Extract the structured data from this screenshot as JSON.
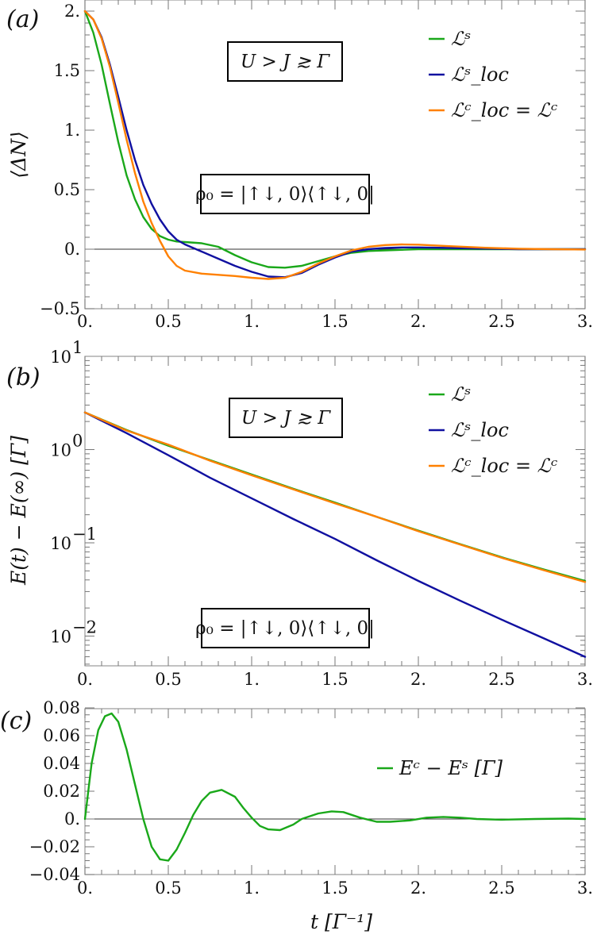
{
  "chart_data": [
    {
      "panel": "(a)",
      "type": "line",
      "title": "",
      "xlabel": "",
      "ylabel": "⟨ΔN⟩",
      "xlim": [
        0,
        3
      ],
      "ylim": [
        -0.5,
        2
      ],
      "xticks": [
        "0.",
        "0.5",
        "1.",
        "1.5",
        "2.",
        "2.5",
        "3."
      ],
      "yticks": [
        "-0.5",
        "0.",
        "0.5",
        "1.",
        "1.5",
        "2."
      ],
      "grid": false,
      "legend_position": "upper right",
      "annotations": [
        "U > J ≳ Γ",
        "ρ₀ = |↑↓,0⟩⟨↑↓,0|"
      ],
      "x": [
        0,
        0.05,
        0.1,
        0.15,
        0.2,
        0.25,
        0.3,
        0.35,
        0.4,
        0.45,
        0.5,
        0.55,
        0.6,
        0.7,
        0.8,
        0.9,
        1.0,
        1.1,
        1.2,
        1.3,
        1.4,
        1.5,
        1.6,
        1.7,
        1.8,
        1.9,
        2.0,
        2.2,
        2.4,
        2.6,
        2.8,
        3.0
      ],
      "series": [
        {
          "name": "L^S",
          "color": "#1aa81a",
          "values": [
            2.0,
            1.82,
            1.55,
            1.22,
            0.9,
            0.62,
            0.42,
            0.27,
            0.17,
            0.11,
            0.08,
            0.065,
            0.06,
            0.05,
            0.02,
            -0.05,
            -0.11,
            -0.15,
            -0.155,
            -0.14,
            -0.1,
            -0.06,
            -0.03,
            -0.015,
            -0.01,
            -0.005,
            0.0,
            0.0,
            0.0,
            0.0,
            0.0,
            0.0
          ]
        },
        {
          "name": "L^S_loc",
          "color": "#1010a0",
          "values": [
            2.0,
            1.93,
            1.78,
            1.55,
            1.28,
            1.0,
            0.75,
            0.54,
            0.38,
            0.25,
            0.15,
            0.08,
            0.04,
            -0.02,
            -0.08,
            -0.14,
            -0.19,
            -0.23,
            -0.235,
            -0.2,
            -0.13,
            -0.07,
            -0.02,
            0.0,
            0.01,
            0.015,
            0.015,
            0.01,
            0.005,
            0.0,
            0.0,
            0.0
          ]
        },
        {
          "name": "L^C_loc = L^C",
          "color": "#ff8000",
          "values": [
            2.0,
            1.93,
            1.77,
            1.53,
            1.23,
            0.92,
            0.64,
            0.4,
            0.22,
            0.07,
            -0.06,
            -0.14,
            -0.18,
            -0.205,
            -0.215,
            -0.225,
            -0.24,
            -0.25,
            -0.24,
            -0.19,
            -0.12,
            -0.06,
            -0.01,
            0.02,
            0.035,
            0.04,
            0.038,
            0.025,
            0.012,
            0.004,
            0.0,
            -0.003
          ]
        }
      ]
    },
    {
      "panel": "(b)",
      "type": "line",
      "yscale": "log",
      "xlabel": "",
      "ylabel": "E(t) − E(∞) [Γ]",
      "xlim": [
        0,
        3
      ],
      "ylim": [
        0.005,
        10
      ],
      "xticks": [
        "0.",
        "0.5",
        "1.",
        "1.5",
        "2.",
        "2.5",
        "3."
      ],
      "yticks": [
        "10^-2",
        "10^-1",
        "10^0",
        "10^1"
      ],
      "grid": false,
      "legend_position": "upper right",
      "annotations": [
        "U > J ≳ Γ",
        "ρ₀ = |↑↓,0⟩⟨↑↓,0|"
      ],
      "x": [
        0,
        0.25,
        0.5,
        0.75,
        1.0,
        1.25,
        1.5,
        1.75,
        2.0,
        2.25,
        2.5,
        2.75,
        3.0
      ],
      "series": [
        {
          "name": "L^S",
          "color": "#1aa81a",
          "values": [
            2.5,
            1.62,
            1.1,
            0.77,
            0.54,
            0.38,
            0.27,
            0.19,
            0.135,
            0.097,
            0.07,
            0.052,
            0.039
          ]
        },
        {
          "name": "L^S_loc",
          "color": "#1010a0",
          "values": [
            2.5,
            1.5,
            0.87,
            0.5,
            0.3,
            0.18,
            0.11,
            0.065,
            0.039,
            0.024,
            0.015,
            0.0095,
            0.006
          ]
        },
        {
          "name": "L^C_loc = L^C",
          "color": "#ff8000",
          "values": [
            2.5,
            1.6,
            1.13,
            0.76,
            0.53,
            0.375,
            0.265,
            0.19,
            0.133,
            0.096,
            0.069,
            0.051,
            0.038
          ]
        }
      ]
    },
    {
      "panel": "(c)",
      "type": "line",
      "xlabel": "t [Γ^-1]",
      "ylabel": "",
      "xlim": [
        0,
        3
      ],
      "ylim": [
        -0.04,
        0.08
      ],
      "xticks": [
        "0.",
        "0.5",
        "1.",
        "1.5",
        "2.",
        "2.5",
        "3."
      ],
      "yticks": [
        "-0.04",
        "-0.02",
        "0.",
        "0.02",
        "0.04",
        "0.06",
        "0.08"
      ],
      "grid": false,
      "legend_position": "upper right",
      "x": [
        0,
        0.04,
        0.08,
        0.12,
        0.16,
        0.2,
        0.25,
        0.3,
        0.35,
        0.4,
        0.45,
        0.5,
        0.55,
        0.6,
        0.65,
        0.7,
        0.75,
        0.82,
        0.9,
        0.95,
        1.0,
        1.05,
        1.1,
        1.17,
        1.25,
        1.3,
        1.4,
        1.48,
        1.55,
        1.65,
        1.75,
        1.83,
        1.95,
        2.05,
        2.15,
        2.25,
        2.35,
        2.5,
        2.7,
        2.9,
        3.0
      ],
      "series": [
        {
          "name": "E^C − E^S [Γ]",
          "color": "#1aa81a",
          "values": [
            0.0,
            0.04,
            0.064,
            0.074,
            0.076,
            0.07,
            0.05,
            0.025,
            0.0,
            -0.02,
            -0.029,
            -0.03,
            -0.022,
            -0.01,
            0.003,
            0.013,
            0.019,
            0.021,
            0.016,
            0.008,
            0.001,
            -0.005,
            -0.0075,
            -0.008,
            -0.004,
            0.0,
            0.004,
            0.0055,
            0.005,
            0.001,
            -0.002,
            -0.002,
            -0.001,
            0.001,
            0.0015,
            0.001,
            0.0,
            -0.0005,
            0.0,
            0.0003,
            0.0
          ]
        }
      ]
    }
  ],
  "labels": {
    "panel_a": "(a)",
    "panel_b": "(b)",
    "panel_c": "(c)",
    "ylabel_a": "⟨ΔN⟩",
    "ylabel_b": "E(t) − E(∞) [Γ]",
    "xlabel_c": "t [Γ⁻¹]",
    "box_regime": "U > J ≳ Γ",
    "box_state": "ρ₀ = |↑↓, 0⟩⟨↑↓, 0|",
    "legend_ab": [
      "ℒˢ",
      "ℒˢ_loc",
      "ℒᶜ_loc = ℒᶜ"
    ],
    "legend_c": "Eᶜ − Eˢ [Γ]"
  }
}
